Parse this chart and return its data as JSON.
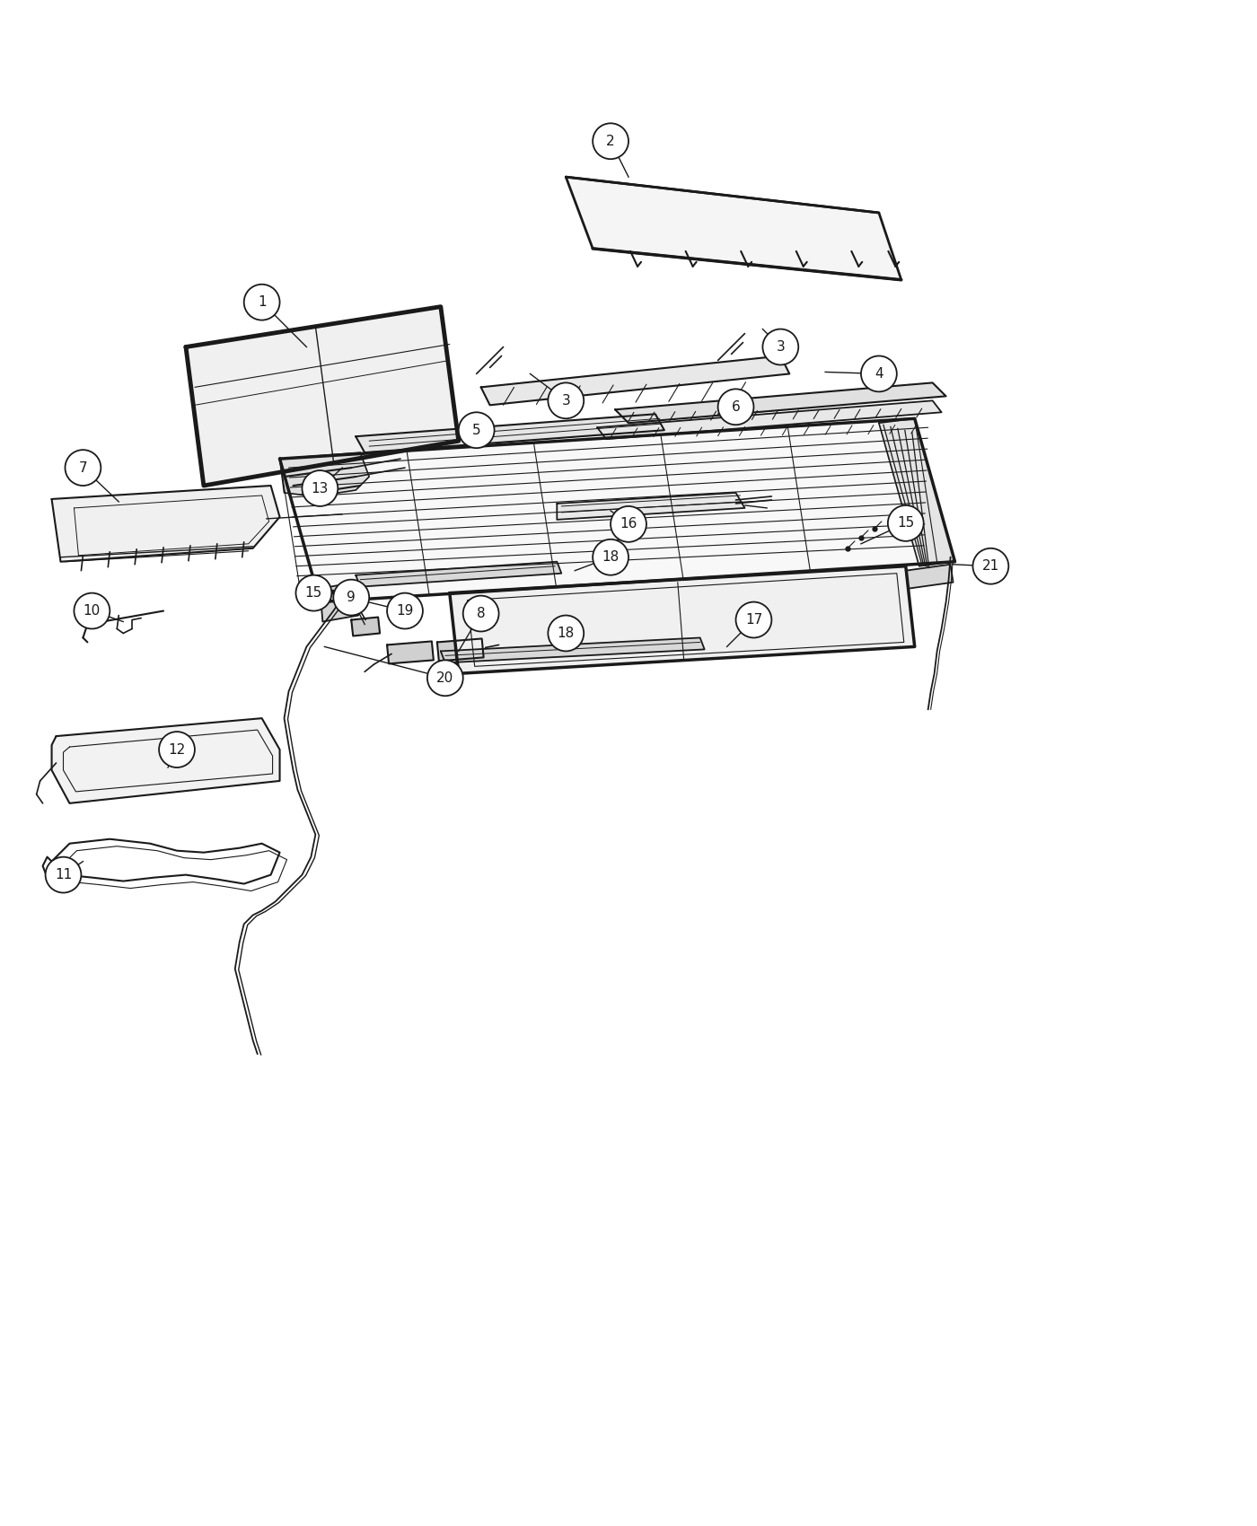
{
  "background_color": "#ffffff",
  "line_color": "#1a1a1a",
  "figsize": [
    14.0,
    17.0
  ],
  "dpi": 100
}
